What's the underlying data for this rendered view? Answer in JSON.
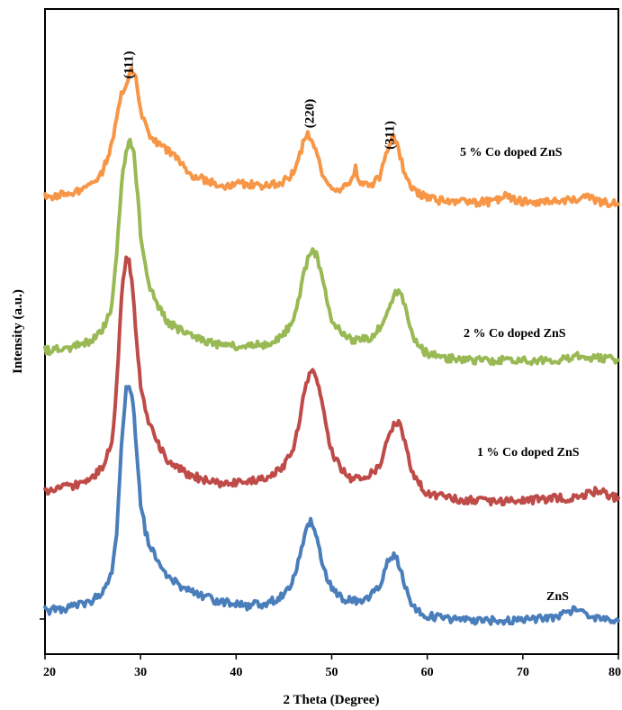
{
  "chart_data": {
    "type": "line",
    "xlabel": "2 Theta (Degree)",
    "ylabel": "Intensity (a.u.)",
    "xlim": [
      20,
      80
    ],
    "x_ticks": [
      "20",
      "30",
      "40",
      "50",
      "60",
      "70",
      "80"
    ],
    "grid": false,
    "peak_labels": [
      {
        "text": "(111)",
        "x": 29.3
      },
      {
        "text": "(220)",
        "x": 48.2
      },
      {
        "text": "(311)",
        "x": 56.6
      }
    ],
    "series": [
      {
        "name": "ZnS",
        "color": "#4a7ebb",
        "x": [
          20,
          22,
          24,
          25,
          26,
          27,
          27.5,
          28,
          28.5,
          28.8,
          29.2,
          29.6,
          30,
          30.5,
          31,
          32,
          33,
          35,
          38,
          41,
          43,
          45,
          46,
          46.5,
          47,
          47.5,
          47.8,
          48.2,
          48.6,
          49,
          49.5,
          50,
          51,
          52,
          53,
          54,
          55,
          55.5,
          56,
          56.5,
          57,
          57.5,
          58,
          58.5,
          59,
          60,
          62,
          65,
          68,
          70,
          73,
          75,
          76,
          77,
          78,
          80
        ],
        "y": [
          8,
          9,
          11,
          12,
          16,
          24,
          40,
          74,
          98,
          100,
          92,
          72,
          52,
          40,
          34,
          27,
          21,
          16,
          12,
          10,
          11,
          14,
          21,
          28,
          36,
          42,
          44,
          41,
          35,
          28,
          22,
          17,
          13,
          12,
          12,
          14,
          18,
          24,
          29,
          31,
          27,
          20,
          14,
          10,
          8,
          6,
          5,
          4,
          4,
          5,
          5,
          8,
          8,
          6,
          5,
          4
        ]
      },
      {
        "name": "1 % Co doped ZnS",
        "color": "#be4b48",
        "x": [
          20,
          22,
          24,
          25,
          26,
          27,
          27.5,
          28,
          28.5,
          28.8,
          29.2,
          29.6,
          30,
          30.5,
          31,
          32,
          33,
          35,
          38,
          41,
          43,
          45,
          46,
          46.5,
          47,
          47.5,
          48,
          48.4,
          48.8,
          49.2,
          49.6,
          50,
          51,
          52,
          53,
          54,
          55,
          55.5,
          56,
          56.5,
          57,
          57.5,
          58,
          58.5,
          59,
          60,
          62,
          65,
          68,
          70,
          73,
          75,
          77,
          78,
          79,
          80
        ],
        "y": [
          8,
          10,
          12,
          14,
          18,
          28,
          50,
          85,
          100,
          98,
          86,
          66,
          50,
          40,
          34,
          26,
          20,
          15,
          12,
          12,
          14,
          18,
          26,
          34,
          44,
          52,
          56,
          54,
          46,
          38,
          30,
          24,
          17,
          14,
          14,
          15,
          19,
          24,
          30,
          34,
          36,
          30,
          22,
          16,
          12,
          8,
          6,
          5,
          5,
          5,
          6,
          6,
          8,
          9,
          7,
          6
        ]
      },
      {
        "name": "2 % Co doped ZnS",
        "color": "#98b954",
        "x": [
          20,
          22,
          24,
          25,
          26,
          27,
          27.5,
          28,
          28.5,
          28.9,
          29.3,
          29.7,
          30,
          30.5,
          31,
          32,
          33,
          35,
          38,
          41,
          43,
          45,
          46,
          46.5,
          47,
          47.5,
          48,
          48.4,
          48.8,
          49.2,
          49.6,
          50,
          51,
          52,
          53,
          54,
          55,
          55.5,
          56,
          56.5,
          57,
          57.5,
          58,
          58.5,
          59,
          60,
          62,
          65,
          68,
          70,
          73,
          75,
          76,
          77,
          78,
          80
        ],
        "y": [
          8,
          9,
          11,
          13,
          17,
          28,
          50,
          80,
          96,
          100,
          94,
          76,
          58,
          44,
          36,
          26,
          20,
          15,
          11,
          10,
          11,
          15,
          22,
          30,
          40,
          48,
          52,
          50,
          44,
          36,
          28,
          22,
          16,
          13,
          13,
          14,
          18,
          23,
          28,
          32,
          34,
          30,
          22,
          15,
          10,
          7,
          5,
          4,
          4,
          4,
          4,
          5,
          6,
          5,
          5,
          4
        ]
      },
      {
        "name": "5 % Co doped ZnS",
        "color": "#f79646",
        "x": [
          20,
          22,
          24,
          25,
          26,
          27,
          27.5,
          28,
          28.5,
          29,
          29.5,
          30,
          30.5,
          31,
          32,
          33,
          34,
          35,
          37,
          39,
          41,
          43,
          45,
          46,
          46.5,
          47,
          47.5,
          48,
          48.5,
          49,
          49.5,
          50,
          51,
          52,
          52.5,
          53,
          54,
          55,
          55.5,
          56,
          56.5,
          57,
          57.5,
          58,
          59,
          60,
          62,
          65,
          67,
          68,
          70,
          72,
          75,
          77,
          78,
          80
        ],
        "y": [
          8,
          10,
          12,
          15,
          20,
          34,
          48,
          58,
          64,
          70,
          66,
          50,
          44,
          38,
          34,
          30,
          26,
          20,
          16,
          14,
          15,
          14,
          16,
          20,
          26,
          34,
          38,
          36,
          28,
          20,
          16,
          14,
          12,
          16,
          22,
          14,
          14,
          18,
          26,
          34,
          38,
          32,
          22,
          16,
          10,
          8,
          6,
          6,
          6,
          9,
          6,
          6,
          7,
          8,
          6,
          5
        ]
      }
    ]
  }
}
